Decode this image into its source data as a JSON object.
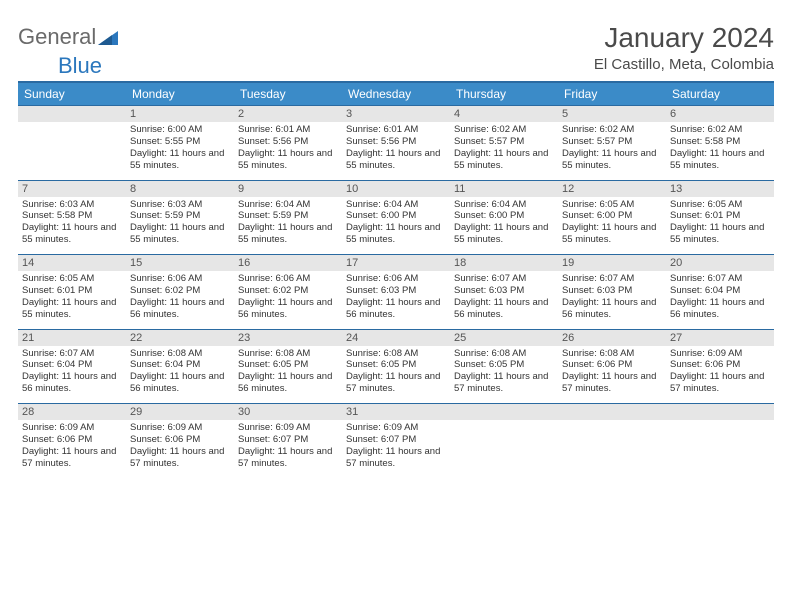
{
  "logo": {
    "word1": "General",
    "word2": "Blue"
  },
  "title": "January 2024",
  "subtitle": "El Castillo, Meta, Colombia",
  "colors": {
    "header_bg": "#3b8bc8",
    "header_border": "#2a6aa1",
    "daynum_bg": "#e6e6e6",
    "text": "#333333",
    "logo_gray": "#6a6a6a",
    "logo_blue": "#2b77bd"
  },
  "day_names": [
    "Sunday",
    "Monday",
    "Tuesday",
    "Wednesday",
    "Thursday",
    "Friday",
    "Saturday"
  ],
  "weeks": [
    [
      null,
      {
        "n": "1",
        "sr": "6:00 AM",
        "ss": "5:55 PM",
        "dl": "11 hours and 55 minutes."
      },
      {
        "n": "2",
        "sr": "6:01 AM",
        "ss": "5:56 PM",
        "dl": "11 hours and 55 minutes."
      },
      {
        "n": "3",
        "sr": "6:01 AM",
        "ss": "5:56 PM",
        "dl": "11 hours and 55 minutes."
      },
      {
        "n": "4",
        "sr": "6:02 AM",
        "ss": "5:57 PM",
        "dl": "11 hours and 55 minutes."
      },
      {
        "n": "5",
        "sr": "6:02 AM",
        "ss": "5:57 PM",
        "dl": "11 hours and 55 minutes."
      },
      {
        "n": "6",
        "sr": "6:02 AM",
        "ss": "5:58 PM",
        "dl": "11 hours and 55 minutes."
      }
    ],
    [
      {
        "n": "7",
        "sr": "6:03 AM",
        "ss": "5:58 PM",
        "dl": "11 hours and 55 minutes."
      },
      {
        "n": "8",
        "sr": "6:03 AM",
        "ss": "5:59 PM",
        "dl": "11 hours and 55 minutes."
      },
      {
        "n": "9",
        "sr": "6:04 AM",
        "ss": "5:59 PM",
        "dl": "11 hours and 55 minutes."
      },
      {
        "n": "10",
        "sr": "6:04 AM",
        "ss": "6:00 PM",
        "dl": "11 hours and 55 minutes."
      },
      {
        "n": "11",
        "sr": "6:04 AM",
        "ss": "6:00 PM",
        "dl": "11 hours and 55 minutes."
      },
      {
        "n": "12",
        "sr": "6:05 AM",
        "ss": "6:00 PM",
        "dl": "11 hours and 55 minutes."
      },
      {
        "n": "13",
        "sr": "6:05 AM",
        "ss": "6:01 PM",
        "dl": "11 hours and 55 minutes."
      }
    ],
    [
      {
        "n": "14",
        "sr": "6:05 AM",
        "ss": "6:01 PM",
        "dl": "11 hours and 55 minutes."
      },
      {
        "n": "15",
        "sr": "6:06 AM",
        "ss": "6:02 PM",
        "dl": "11 hours and 56 minutes."
      },
      {
        "n": "16",
        "sr": "6:06 AM",
        "ss": "6:02 PM",
        "dl": "11 hours and 56 minutes."
      },
      {
        "n": "17",
        "sr": "6:06 AM",
        "ss": "6:03 PM",
        "dl": "11 hours and 56 minutes."
      },
      {
        "n": "18",
        "sr": "6:07 AM",
        "ss": "6:03 PM",
        "dl": "11 hours and 56 minutes."
      },
      {
        "n": "19",
        "sr": "6:07 AM",
        "ss": "6:03 PM",
        "dl": "11 hours and 56 minutes."
      },
      {
        "n": "20",
        "sr": "6:07 AM",
        "ss": "6:04 PM",
        "dl": "11 hours and 56 minutes."
      }
    ],
    [
      {
        "n": "21",
        "sr": "6:07 AM",
        "ss": "6:04 PM",
        "dl": "11 hours and 56 minutes."
      },
      {
        "n": "22",
        "sr": "6:08 AM",
        "ss": "6:04 PM",
        "dl": "11 hours and 56 minutes."
      },
      {
        "n": "23",
        "sr": "6:08 AM",
        "ss": "6:05 PM",
        "dl": "11 hours and 56 minutes."
      },
      {
        "n": "24",
        "sr": "6:08 AM",
        "ss": "6:05 PM",
        "dl": "11 hours and 57 minutes."
      },
      {
        "n": "25",
        "sr": "6:08 AM",
        "ss": "6:05 PM",
        "dl": "11 hours and 57 minutes."
      },
      {
        "n": "26",
        "sr": "6:08 AM",
        "ss": "6:06 PM",
        "dl": "11 hours and 57 minutes."
      },
      {
        "n": "27",
        "sr": "6:09 AM",
        "ss": "6:06 PM",
        "dl": "11 hours and 57 minutes."
      }
    ],
    [
      {
        "n": "28",
        "sr": "6:09 AM",
        "ss": "6:06 PM",
        "dl": "11 hours and 57 minutes."
      },
      {
        "n": "29",
        "sr": "6:09 AM",
        "ss": "6:06 PM",
        "dl": "11 hours and 57 minutes."
      },
      {
        "n": "30",
        "sr": "6:09 AM",
        "ss": "6:07 PM",
        "dl": "11 hours and 57 minutes."
      },
      {
        "n": "31",
        "sr": "6:09 AM",
        "ss": "6:07 PM",
        "dl": "11 hours and 57 minutes."
      },
      null,
      null,
      null
    ]
  ],
  "labels": {
    "sunrise": "Sunrise:",
    "sunset": "Sunset:",
    "daylight": "Daylight:"
  }
}
